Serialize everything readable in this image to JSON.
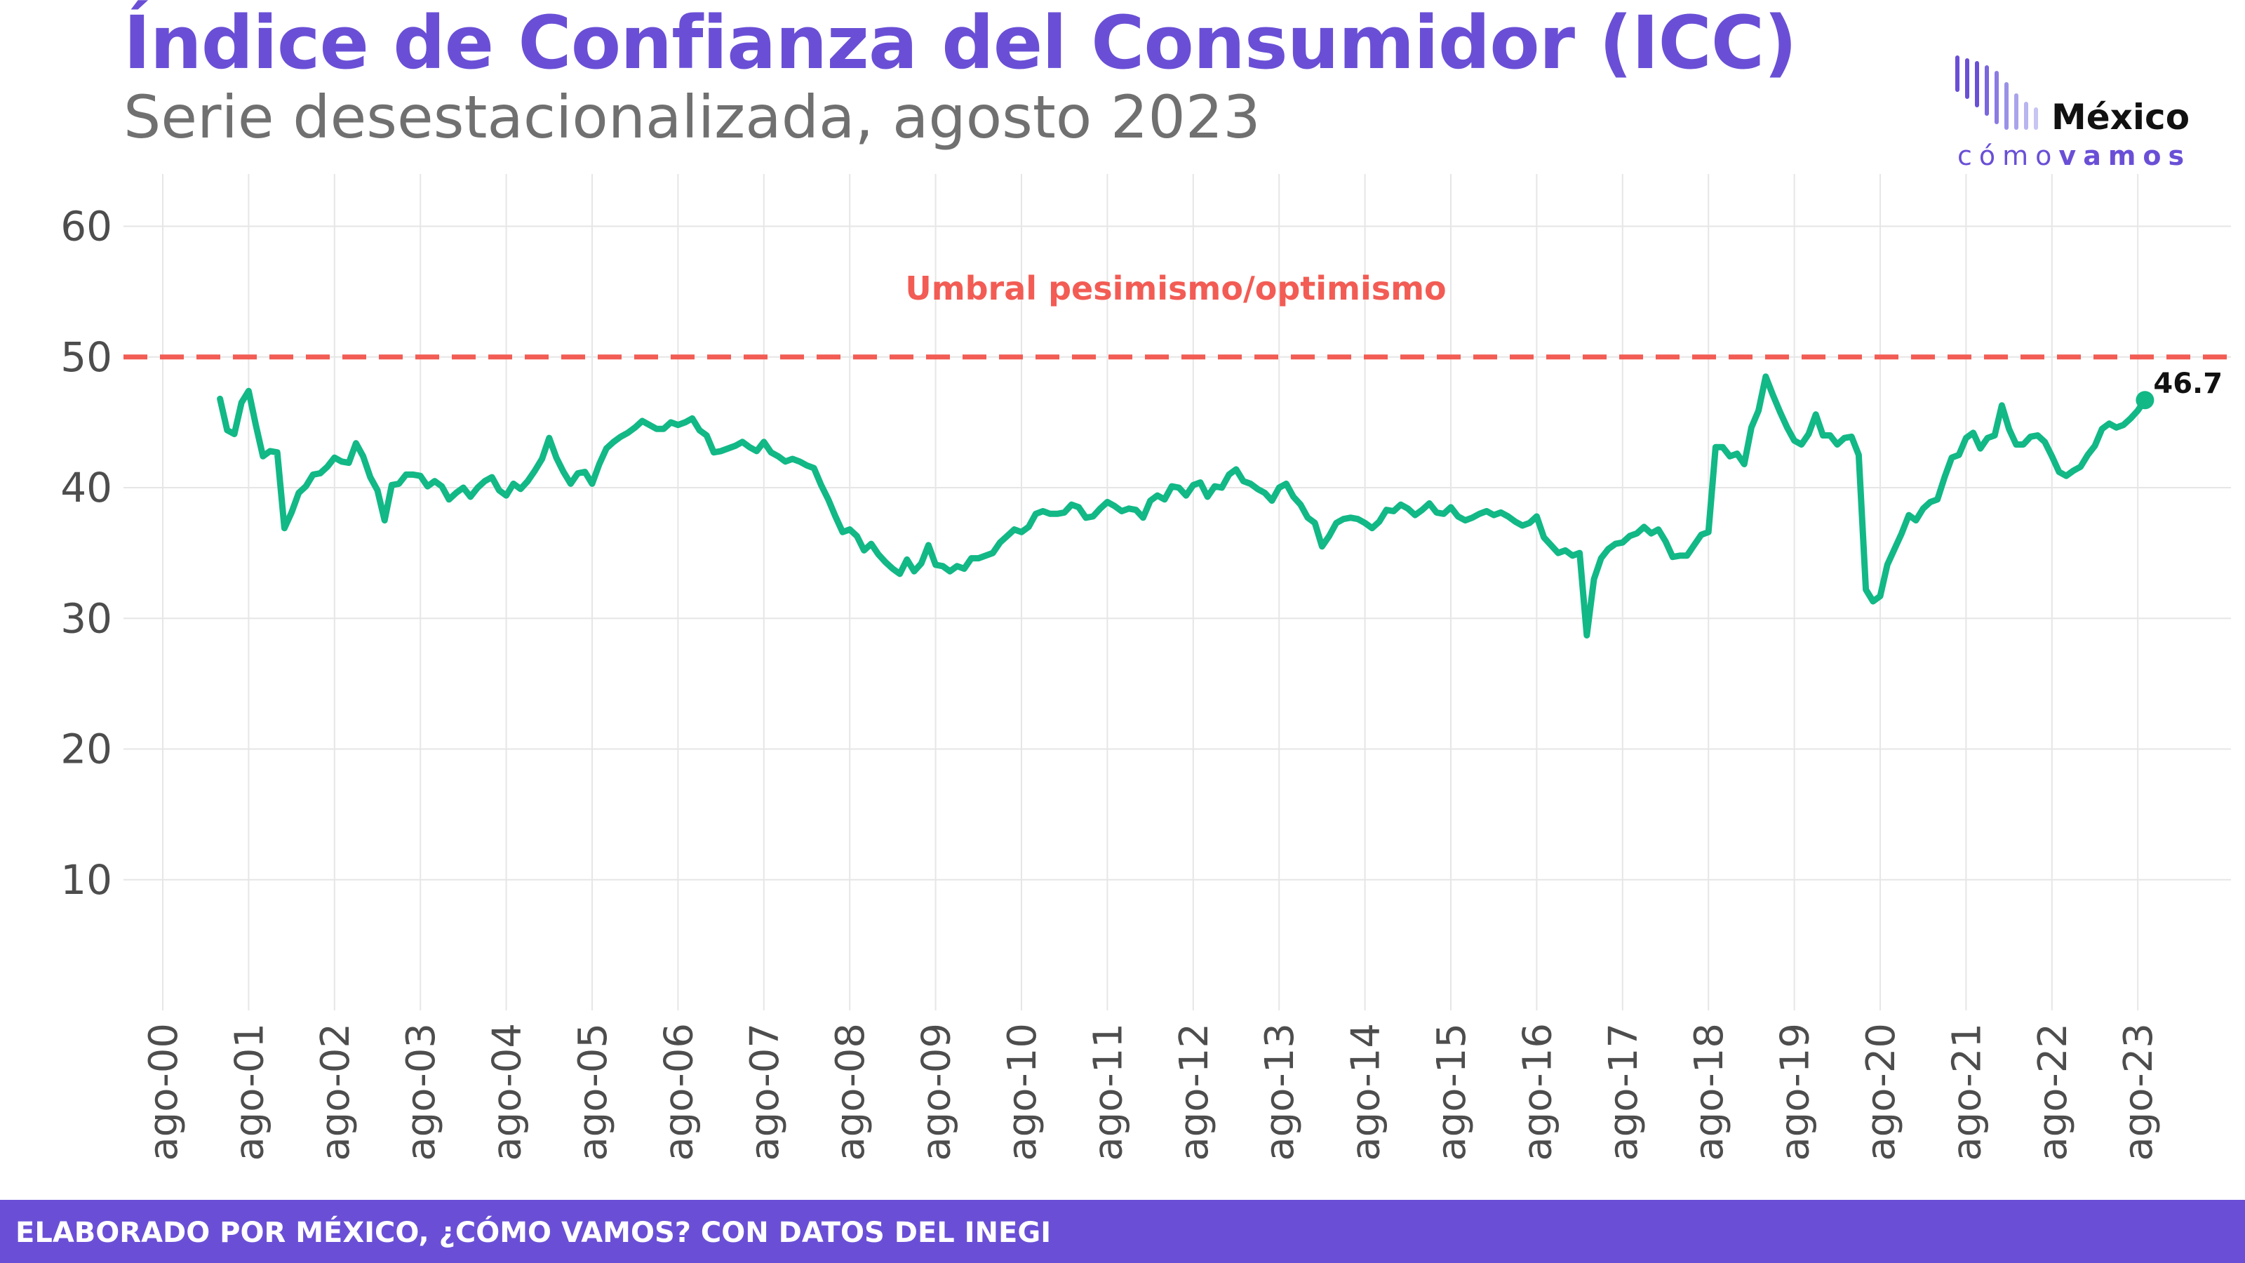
{
  "header": {
    "title": "Índice de Confianza del Consumidor (ICC)",
    "subtitle": "Serie desestacionalizada, agosto 2023"
  },
  "logo": {
    "name": "México",
    "tag_light": "cómo",
    "tag_bold": "vamos"
  },
  "footer": {
    "text": "ELABORADO POR MÉXICO, ¿CÓMO VAMOS? CON DATOS DEL INEGI"
  },
  "colors": {
    "accent": "#6a4fd6",
    "line": "#12b886",
    "threshold": "#f25c54",
    "grid": "#e6e6e6"
  },
  "chart_data": {
    "type": "line",
    "title": "Índice de Confianza del Consumidor (ICC)",
    "subtitle": "Serie desestacionalizada, agosto 2023",
    "xlabel": "",
    "ylabel": "",
    "ylim": [
      0,
      64
    ],
    "yticks": [
      10,
      20,
      30,
      40,
      50,
      60
    ],
    "xticks": [
      "ago-00",
      "ago-01",
      "ago-02",
      "ago-03",
      "ago-04",
      "ago-05",
      "ago-06",
      "ago-07",
      "ago-08",
      "ago-09",
      "ago-10",
      "ago-11",
      "ago-12",
      "ago-13",
      "ago-14",
      "ago-15",
      "ago-16",
      "ago-17",
      "ago-18",
      "ago-19",
      "ago-20",
      "ago-21",
      "ago-22",
      "ago-23"
    ],
    "grid": true,
    "threshold": {
      "value": 50,
      "label": "Umbral pesimismo/optimismo"
    },
    "last_label": "46.7",
    "series": [
      {
        "x_start": "2001-04",
        "frequency": "monthly",
        "values": [
          46.8,
          44.4,
          44.1,
          46.5,
          47.4,
          44.8,
          42.4,
          42.8,
          42.7,
          36.9,
          38.1,
          39.6,
          40.1,
          41.0,
          41.1,
          41.6,
          42.3,
          42.0,
          41.9,
          43.4,
          42.4,
          40.8,
          39.8,
          37.5,
          40.2,
          40.3,
          41.0,
          41.0,
          40.9,
          40.1,
          40.5,
          40.1,
          39.1,
          39.6,
          40.0,
          39.3,
          40.0,
          40.5,
          40.8,
          39.8,
          39.4,
          40.3,
          39.9,
          40.5,
          41.3,
          42.2,
          43.8,
          42.3,
          41.2,
          40.3,
          41.1,
          41.2,
          40.3,
          41.8,
          43.0,
          43.5,
          43.9,
          44.2,
          44.6,
          45.1,
          44.8,
          44.5,
          44.5,
          45.0,
          44.8,
          45.0,
          45.3,
          44.4,
          44.0,
          42.7,
          42.8,
          43.0,
          43.2,
          43.5,
          43.1,
          42.8,
          43.5,
          42.7,
          42.4,
          42.0,
          42.2,
          42.0,
          41.7,
          41.5,
          40.2,
          39.1,
          37.8,
          36.6,
          36.8,
          36.3,
          35.2,
          35.7,
          34.9,
          34.3,
          33.8,
          33.4,
          34.5,
          33.6,
          34.2,
          35.6,
          34.1,
          34.0,
          33.6,
          34.0,
          33.8,
          34.6,
          34.6,
          34.8,
          35.0,
          35.8,
          36.3,
          36.8,
          36.6,
          37.0,
          38.0,
          38.2,
          38.0,
          38.0,
          38.1,
          38.7,
          38.5,
          37.7,
          37.8,
          38.4,
          38.9,
          38.6,
          38.2,
          38.4,
          38.3,
          37.7,
          39.0,
          39.4,
          39.1,
          40.1,
          40.0,
          39.4,
          40.2,
          40.4,
          39.3,
          40.1,
          40.0,
          41.0,
          41.4,
          40.5,
          40.3,
          39.9,
          39.6,
          39.0,
          40.0,
          40.3,
          39.3,
          38.7,
          37.7,
          37.3,
          35.5,
          36.3,
          37.3,
          37.6,
          37.7,
          37.6,
          37.3,
          36.9,
          37.4,
          38.3,
          38.2,
          38.7,
          38.4,
          37.9,
          38.3,
          38.8,
          38.1,
          38.0,
          38.5,
          37.8,
          37.5,
          37.7,
          38.0,
          38.2,
          37.9,
          38.1,
          37.8,
          37.4,
          37.1,
          37.3,
          37.8,
          36.2,
          35.6,
          35.0,
          35.2,
          34.8,
          35.0,
          28.7,
          33.0,
          34.6,
          35.3,
          35.7,
          35.8,
          36.3,
          36.5,
          37.0,
          36.5,
          36.8,
          35.9,
          34.7,
          34.8,
          34.8,
          35.6,
          36.4,
          36.6,
          43.1,
          43.1,
          42.4,
          42.6,
          41.8,
          44.6,
          45.9,
          48.5,
          47.1,
          45.8,
          44.6,
          43.6,
          43.3,
          44.1,
          45.6,
          44.0,
          44.0,
          43.3,
          43.8,
          43.9,
          42.5,
          32.2,
          31.3,
          31.7,
          34.1,
          35.3,
          36.5,
          37.9,
          37.5,
          38.4,
          38.9,
          39.1,
          40.8,
          42.3,
          42.5,
          43.8,
          44.2,
          43.0,
          43.8,
          44.0,
          46.3,
          44.5,
          43.3,
          43.3,
          43.9,
          44.0,
          43.5,
          42.4,
          41.2,
          40.9,
          41.3,
          41.6,
          42.5,
          43.2,
          44.5,
          44.9,
          44.6,
          44.8,
          45.3,
          45.9,
          46.7
        ]
      }
    ]
  }
}
